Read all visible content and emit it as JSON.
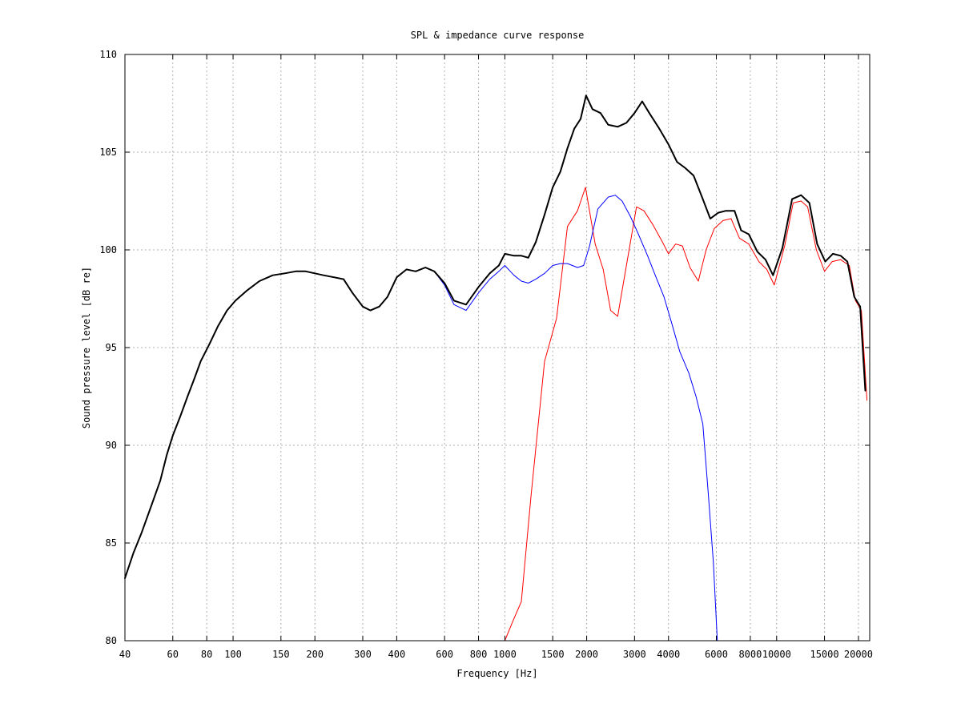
{
  "chart_data": {
    "type": "line",
    "title": "SPL & impedance curve response",
    "xlabel": "Frequency [Hz]",
    "ylabel": "Sound pressure level [dB re]",
    "x_scale": "log",
    "xlim": [
      40,
      22000
    ],
    "ylim": [
      80,
      110
    ],
    "grid": true,
    "legend": "none",
    "x_ticks": [
      40,
      60,
      80,
      100,
      150,
      200,
      300,
      400,
      600,
      800,
      1000,
      1500,
      2000,
      3000,
      4000,
      6000,
      8000,
      10000,
      15000,
      20000
    ],
    "x_tick_labels": [
      "40",
      "60",
      "80",
      "100",
      "150",
      "200",
      "300",
      "400",
      "600",
      "800",
      "1000",
      "1500",
      "2000",
      "3000",
      "4000",
      "6000",
      "8000",
      "10000",
      "15000",
      "20000"
    ],
    "y_ticks": [
      80,
      85,
      90,
      95,
      100,
      105,
      110
    ],
    "y_tick_labels": [
      "80",
      "85",
      "90",
      "95",
      "100",
      "105",
      "110"
    ],
    "series": [
      {
        "color": "#ff0000",
        "width": 1,
        "points": [
          [
            1000,
            80.0
          ],
          [
            1070,
            81.0
          ],
          [
            1150,
            82.0
          ],
          [
            1250,
            87.5
          ],
          [
            1400,
            94.3
          ],
          [
            1550,
            96.5
          ],
          [
            1700,
            101.2
          ],
          [
            1850,
            102.0
          ],
          [
            1980,
            103.2
          ],
          [
            2150,
            100.3
          ],
          [
            2300,
            99.0
          ],
          [
            2450,
            96.9
          ],
          [
            2600,
            96.6
          ],
          [
            2800,
            99.2
          ],
          [
            3050,
            102.2
          ],
          [
            3250,
            102.0
          ],
          [
            3500,
            101.3
          ],
          [
            3800,
            100.4
          ],
          [
            4000,
            99.8
          ],
          [
            4250,
            100.3
          ],
          [
            4500,
            100.2
          ],
          [
            4800,
            99.1
          ],
          [
            5150,
            98.4
          ],
          [
            5500,
            100.0
          ],
          [
            5900,
            101.1
          ],
          [
            6350,
            101.5
          ],
          [
            6800,
            101.6
          ],
          [
            7300,
            100.6
          ],
          [
            7900,
            100.3
          ],
          [
            8600,
            99.4
          ],
          [
            9200,
            99.0
          ],
          [
            9800,
            98.2
          ],
          [
            10700,
            100.2
          ],
          [
            11500,
            102.4
          ],
          [
            12300,
            102.5
          ],
          [
            13000,
            102.2
          ],
          [
            14000,
            100.0
          ],
          [
            15000,
            98.9
          ],
          [
            16000,
            99.4
          ],
          [
            17200,
            99.5
          ],
          [
            18500,
            99.2
          ],
          [
            19500,
            97.4
          ],
          [
            20500,
            96.9
          ],
          [
            21500,
            92.3
          ]
        ]
      },
      {
        "color": "#0000ff",
        "width": 1,
        "points": [
          [
            40,
            83.2
          ],
          [
            43,
            84.5
          ],
          [
            46,
            85.5
          ],
          [
            50,
            86.9
          ],
          [
            54,
            88.2
          ],
          [
            57,
            89.5
          ],
          [
            60,
            90.5
          ],
          [
            64,
            91.5
          ],
          [
            68,
            92.5
          ],
          [
            72,
            93.4
          ],
          [
            76,
            94.3
          ],
          [
            82,
            95.2
          ],
          [
            88,
            96.1
          ],
          [
            95,
            96.9
          ],
          [
            102,
            97.4
          ],
          [
            112,
            97.9
          ],
          [
            125,
            98.4
          ],
          [
            140,
            98.7
          ],
          [
            155,
            98.8
          ],
          [
            170,
            98.9
          ],
          [
            185,
            98.9
          ],
          [
            200,
            98.8
          ],
          [
            215,
            98.7
          ],
          [
            235,
            98.6
          ],
          [
            255,
            98.5
          ],
          [
            275,
            97.8
          ],
          [
            300,
            97.1
          ],
          [
            320,
            96.9
          ],
          [
            345,
            97.1
          ],
          [
            370,
            97.6
          ],
          [
            400,
            98.6
          ],
          [
            435,
            99.0
          ],
          [
            470,
            98.9
          ],
          [
            510,
            99.1
          ],
          [
            550,
            98.9
          ],
          [
            600,
            98.2
          ],
          [
            650,
            97.2
          ],
          [
            720,
            96.9
          ],
          [
            800,
            97.8
          ],
          [
            880,
            98.5
          ],
          [
            950,
            98.9
          ],
          [
            1000,
            99.2
          ],
          [
            1080,
            98.7
          ],
          [
            1150,
            98.4
          ],
          [
            1220,
            98.3
          ],
          [
            1300,
            98.5
          ],
          [
            1400,
            98.8
          ],
          [
            1500,
            99.2
          ],
          [
            1600,
            99.3
          ],
          [
            1700,
            99.3
          ],
          [
            1850,
            99.1
          ],
          [
            1950,
            99.2
          ],
          [
            2050,
            100.2
          ],
          [
            2200,
            102.1
          ],
          [
            2400,
            102.7
          ],
          [
            2550,
            102.8
          ],
          [
            2700,
            102.5
          ],
          [
            2900,
            101.7
          ],
          [
            3100,
            100.8
          ],
          [
            3350,
            99.7
          ],
          [
            3600,
            98.6
          ],
          [
            3850,
            97.6
          ],
          [
            4100,
            96.3
          ],
          [
            4400,
            94.8
          ],
          [
            4750,
            93.7
          ],
          [
            5050,
            92.5
          ],
          [
            5350,
            91.1
          ],
          [
            5600,
            87.6
          ],
          [
            5850,
            84.0
          ],
          [
            6050,
            80.0
          ]
        ]
      },
      {
        "color": "#000000",
        "width": 2,
        "points": [
          [
            40,
            83.2
          ],
          [
            43,
            84.5
          ],
          [
            46,
            85.5
          ],
          [
            50,
            86.9
          ],
          [
            54,
            88.2
          ],
          [
            57,
            89.5
          ],
          [
            60,
            90.5
          ],
          [
            64,
            91.5
          ],
          [
            68,
            92.5
          ],
          [
            72,
            93.4
          ],
          [
            76,
            94.3
          ],
          [
            82,
            95.2
          ],
          [
            88,
            96.1
          ],
          [
            95,
            96.9
          ],
          [
            102,
            97.4
          ],
          [
            112,
            97.9
          ],
          [
            125,
            98.4
          ],
          [
            140,
            98.7
          ],
          [
            155,
            98.8
          ],
          [
            170,
            98.9
          ],
          [
            185,
            98.9
          ],
          [
            200,
            98.8
          ],
          [
            215,
            98.7
          ],
          [
            235,
            98.6
          ],
          [
            255,
            98.5
          ],
          [
            275,
            97.8
          ],
          [
            300,
            97.1
          ],
          [
            320,
            96.9
          ],
          [
            345,
            97.1
          ],
          [
            370,
            97.6
          ],
          [
            400,
            98.6
          ],
          [
            435,
            99.0
          ],
          [
            470,
            98.9
          ],
          [
            510,
            99.1
          ],
          [
            550,
            98.9
          ],
          [
            600,
            98.3
          ],
          [
            650,
            97.4
          ],
          [
            720,
            97.2
          ],
          [
            800,
            98.1
          ],
          [
            880,
            98.8
          ],
          [
            950,
            99.2
          ],
          [
            1000,
            99.8
          ],
          [
            1080,
            99.7
          ],
          [
            1150,
            99.7
          ],
          [
            1220,
            99.6
          ],
          [
            1300,
            100.4
          ],
          [
            1400,
            101.8
          ],
          [
            1500,
            103.2
          ],
          [
            1600,
            104.0
          ],
          [
            1700,
            105.2
          ],
          [
            1800,
            106.2
          ],
          [
            1900,
            106.7
          ],
          [
            1990,
            107.9
          ],
          [
            2100,
            107.2
          ],
          [
            2250,
            107.0
          ],
          [
            2400,
            106.4
          ],
          [
            2600,
            106.3
          ],
          [
            2800,
            106.5
          ],
          [
            3000,
            107.0
          ],
          [
            3200,
            107.6
          ],
          [
            3400,
            107.0
          ],
          [
            3700,
            106.2
          ],
          [
            4000,
            105.4
          ],
          [
            4300,
            104.5
          ],
          [
            4600,
            104.2
          ],
          [
            4950,
            103.8
          ],
          [
            5350,
            102.6
          ],
          [
            5700,
            101.6
          ],
          [
            6100,
            101.9
          ],
          [
            6500,
            102.0
          ],
          [
            7000,
            102.0
          ],
          [
            7400,
            101.0
          ],
          [
            7900,
            100.8
          ],
          [
            8500,
            99.9
          ],
          [
            9100,
            99.5
          ],
          [
            9700,
            98.7
          ],
          [
            10500,
            100.1
          ],
          [
            11400,
            102.6
          ],
          [
            12300,
            102.8
          ],
          [
            13200,
            102.4
          ],
          [
            14100,
            100.3
          ],
          [
            15100,
            99.4
          ],
          [
            16100,
            99.8
          ],
          [
            17200,
            99.7
          ],
          [
            18200,
            99.4
          ],
          [
            19300,
            97.6
          ],
          [
            20300,
            97.1
          ],
          [
            21200,
            92.8
          ]
        ]
      }
    ]
  }
}
